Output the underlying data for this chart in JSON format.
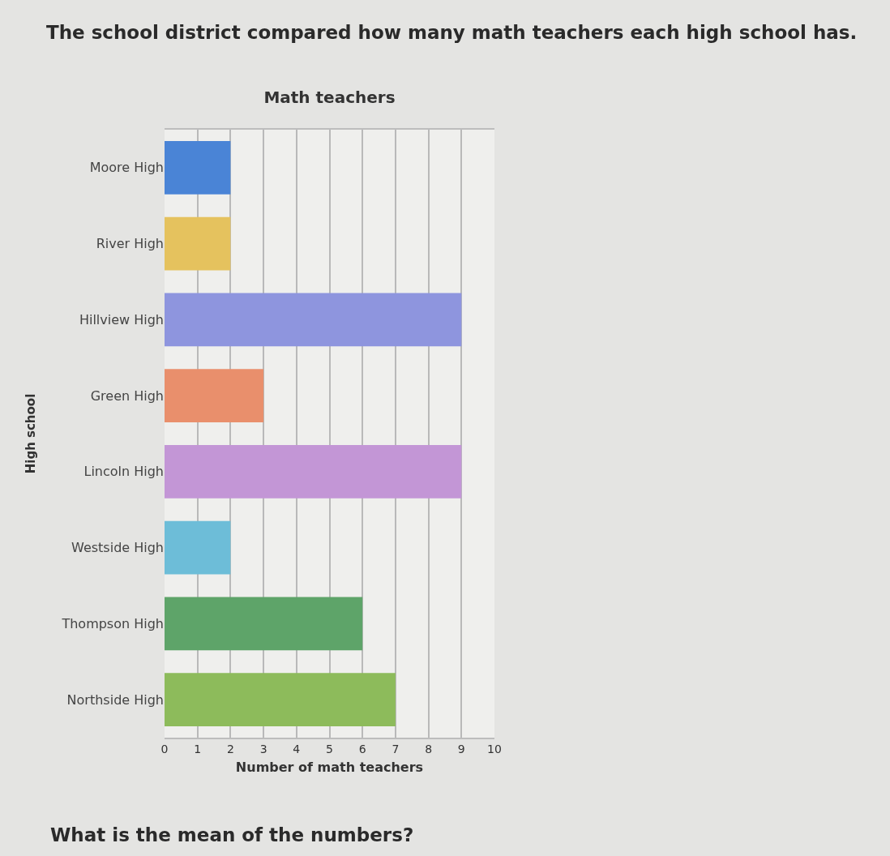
{
  "chart_data": {
    "type": "bar",
    "orientation": "horizontal",
    "title": "Math teachers",
    "xlabel": "Number of math teachers",
    "ylabel": "High school",
    "categories": [
      "Moore High",
      "River High",
      "Hillview High",
      "Green High",
      "Lincoln High",
      "Westside High",
      "Thompson High",
      "Northside High"
    ],
    "values": [
      2,
      2,
      9,
      3,
      9,
      2,
      6,
      7
    ],
    "colors": [
      "#4a84d6",
      "#e5c25e",
      "#8e95de",
      "#e98f6c",
      "#c396d6",
      "#6dbdd8",
      "#5ea469",
      "#8dbb5b"
    ],
    "xlim": [
      0,
      10
    ],
    "xticks": [
      0,
      1,
      2,
      3,
      4,
      5,
      6,
      7,
      8,
      9,
      10
    ],
    "grid": "x",
    "annotations": [
      "The school district compared how many math teachers each high school has.",
      "What is the mean of the numbers?"
    ]
  }
}
